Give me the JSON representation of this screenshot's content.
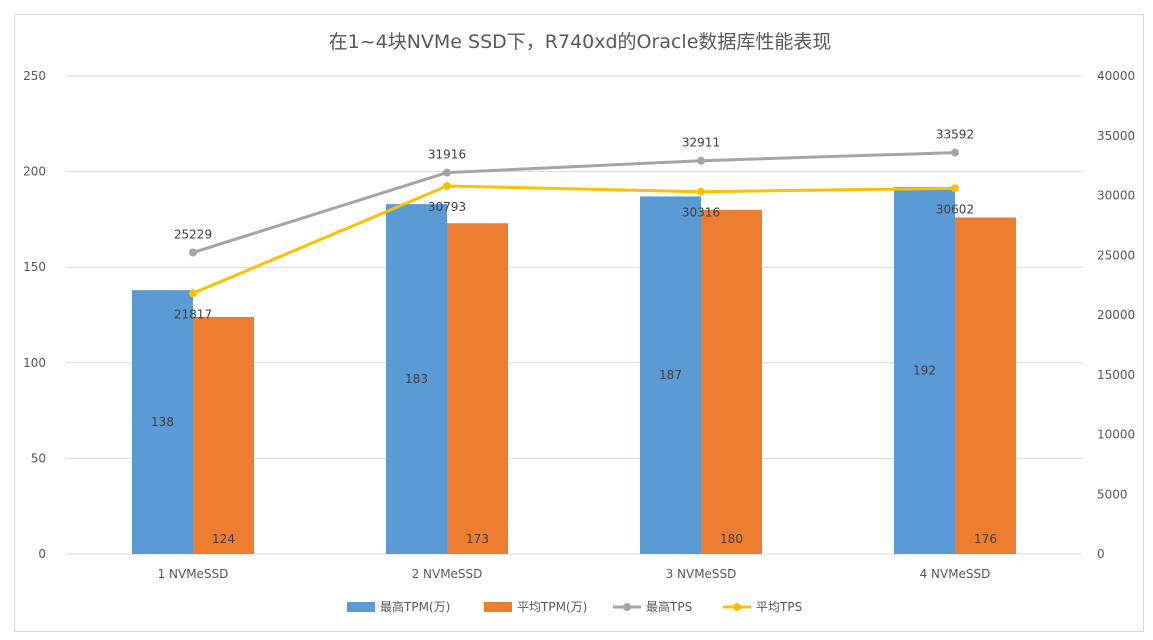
{
  "chart_data": {
    "type": "bar",
    "title": "在1~4块NVMe SSD下，R740xd的Oracle数据库性能表现",
    "categories": [
      "1 NVMeSSD",
      "2 NVMeSSD",
      "3 NVMeSSD",
      "4 NVMeSSD"
    ],
    "series": [
      {
        "name": "最高TPM(万)",
        "type": "bar",
        "axis": "left",
        "color": "#5B9BD5",
        "values": [
          138,
          183,
          187,
          192
        ]
      },
      {
        "name": "平均TPM(万)",
        "type": "bar",
        "axis": "left",
        "color": "#ED7D31",
        "values": [
          124,
          173,
          180,
          176
        ]
      },
      {
        "name": "最高TPS",
        "type": "line",
        "axis": "right",
        "color": "#A5A5A5",
        "values": [
          25229,
          31916,
          32911,
          33592
        ]
      },
      {
        "name": "平均TPS",
        "type": "line",
        "axis": "right",
        "color": "#FFC000",
        "values": [
          21817,
          30793,
          30316,
          30602
        ]
      }
    ],
    "y_left": {
      "min": 0,
      "max": 250,
      "ticks": [
        "0",
        "50",
        "100",
        "150",
        "200",
        "250"
      ]
    },
    "y_right": {
      "min": 0,
      "max": 40000,
      "ticks": [
        "0",
        "5000",
        "10000",
        "15000",
        "20000",
        "25000",
        "30000",
        "35000",
        "40000"
      ]
    },
    "grid": true,
    "legend": "bottom"
  }
}
